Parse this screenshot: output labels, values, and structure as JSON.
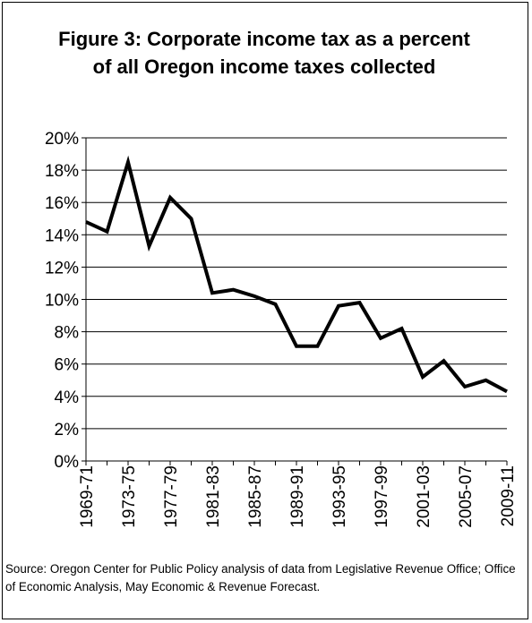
{
  "chart_data": {
    "type": "line",
    "title": "Figure 3: Corporate income tax as a percent of all Oregon income taxes collected",
    "xlabel": "",
    "ylabel": "",
    "ylim": [
      0,
      20
    ],
    "y_ticks": [
      "0%",
      "2%",
      "4%",
      "6%",
      "8%",
      "10%",
      "12%",
      "14%",
      "16%",
      "18%",
      "20%"
    ],
    "y_tick_values": [
      0,
      2,
      4,
      6,
      8,
      10,
      12,
      14,
      16,
      18,
      20
    ],
    "x_tick_labels": [
      "1969-71",
      "1973-75",
      "1977-79",
      "1981-83",
      "1985-87",
      "1989-91",
      "1993-95",
      "1997-99",
      "2001-03",
      "2005-07",
      "2009-11"
    ],
    "grid": true,
    "legend": "none",
    "line_color": "#000000",
    "series": [
      {
        "values": [
          14.8,
          14.2,
          18.5,
          13.3,
          16.3,
          15.0,
          10.4,
          10.6,
          10.2,
          9.7,
          7.1,
          7.1,
          9.6,
          9.8,
          7.6,
          8.2,
          5.2,
          6.2,
          4.6,
          5.0,
          4.3
        ]
      }
    ],
    "source": "Source: Oregon Center for Public Policy analysis of data from Legislative Revenue Office; Office of Economic Analysis, May Economic & Revenue Forecast."
  }
}
